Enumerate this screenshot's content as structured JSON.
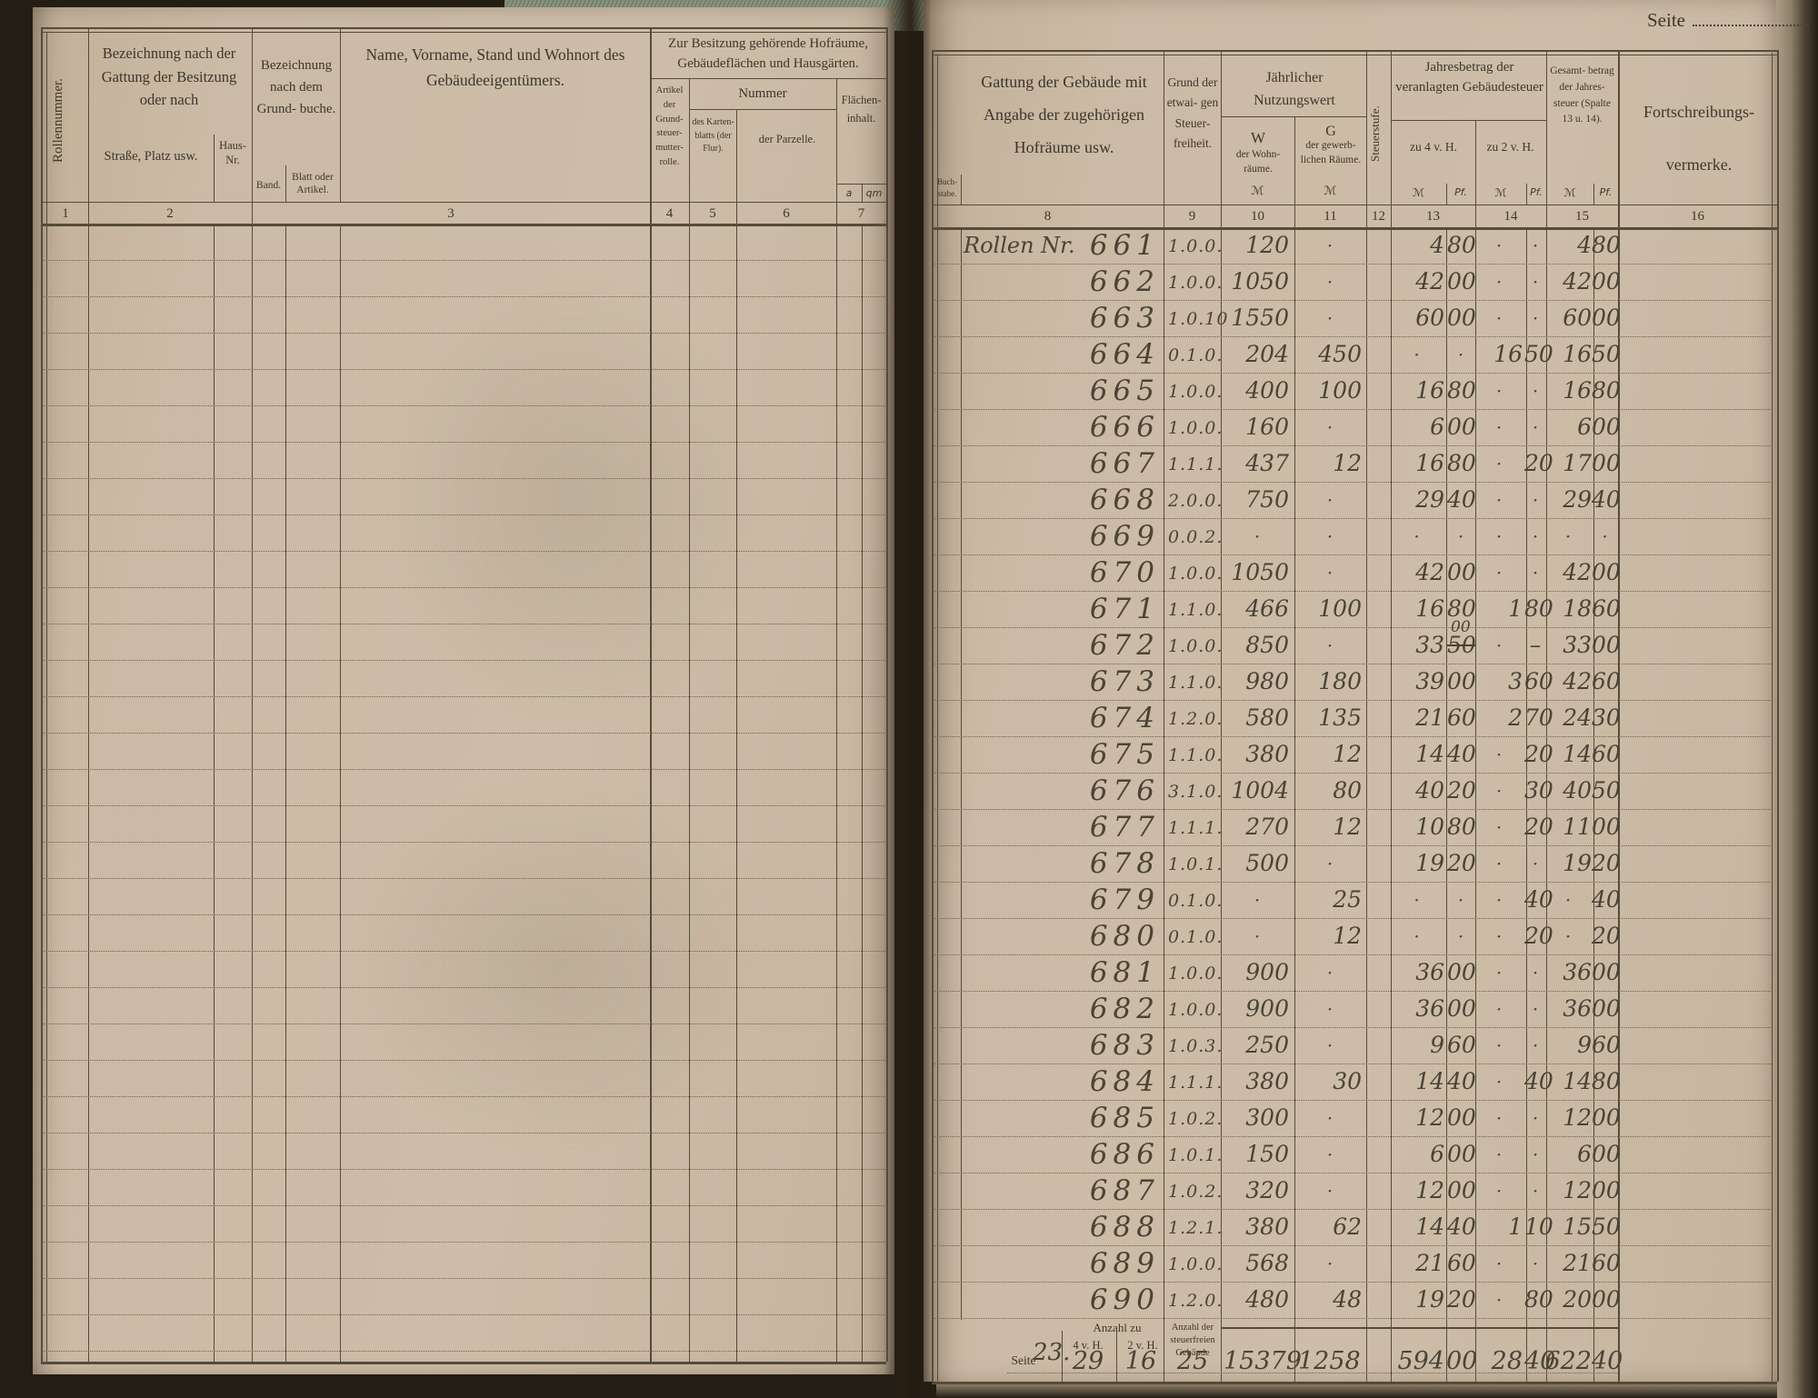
{
  "book": {
    "seite_label": "Seite",
    "seite_value": ""
  },
  "left_page": {
    "col1_rotated": "Rollennummer.",
    "col2_heading": "Bezeichnung nach der Gattung der Besitzung oder nach",
    "col2_sub1": "Straße, Platz usw.",
    "col2_sub2": "Haus- Nr.",
    "col3_heading": "Bezeichnung nach dem Grund- buche.",
    "col3_sub1": "Band.",
    "col3_sub2": "Blatt oder Artikel.",
    "col_name_heading": "Name, Vorname, Stand und Wohnort des Gebäudeeigentümers.",
    "group5_heading": "Zur Besitzung gehörende Hofräume, Gebäudeflächen und Hausgärten.",
    "col4_label": "Artikel der Grund- steuer- mutter- rolle.",
    "nummer_heading": "Nummer",
    "col5_label": "des Karten- blatts (der Flur).",
    "col6_label": "der Parzelle.",
    "col7_label": "Flächen- inhalt.",
    "col7_unit_a": "a",
    "col7_unit_qm": "qm",
    "col_numbers": [
      "1",
      "2",
      "3",
      "4",
      "5",
      "6",
      "7"
    ]
  },
  "right_page": {
    "col8_heading": "Gattung der Gebäude mit Angabe der zugehörigen Hofräume usw.",
    "col8_corner": "Buch- stabe.",
    "col9_heading": "Grund der etwai- gen Steuer- freiheit.",
    "nutzungswert_heading": "Jährlicher Nutzungswert",
    "col10_label_big": "W",
    "col10_label": "der Wohn- räume.",
    "col11_label_big": "G",
    "col11_label": "der gewerb- lichen Räume.",
    "col12_rotated": "Steuerstufe.",
    "jahresbetrag_heading": "Jahresbetrag der veranlagten Gebäudesteuer",
    "col13_label": "zu 4 v. H.",
    "col14_label": "zu 2 v. H.",
    "col15_label": "Gesamt- betrag der Jahres- steuer (Spalte 13 u. 14).",
    "col16_heading": "Fortschreibungs- vermerke.",
    "unit_mark": "ℳ",
    "unit_pf": "Pf.",
    "col_numbers": [
      "8",
      "9",
      "10",
      "11",
      "12",
      "13",
      "14",
      "15",
      "16"
    ],
    "rows": [
      {
        "prefix": "Rollen Nr.",
        "nr": "661",
        "grund": "1.0.0.",
        "w": "120",
        "g": "·",
        "m4": "4",
        "pf4": "80",
        "m2": "·",
        "pf2": "·",
        "mt": "4",
        "pft": "80"
      },
      {
        "nr": "662",
        "grund": "1.0.0.",
        "w": "1050",
        "g": "·",
        "m4": "42",
        "pf4": "00",
        "m2": "·",
        "pf2": "·",
        "mt": "42",
        "pft": "00"
      },
      {
        "nr": "663",
        "grund": "1.0.10",
        "w": "1550",
        "g": "·",
        "m4": "60",
        "pf4": "00",
        "m2": "·",
        "pf2": "·",
        "mt": "60",
        "pft": "00"
      },
      {
        "nr": "664",
        "grund": "0.1.0.",
        "w": "204",
        "g": "450",
        "m4": "·",
        "pf4": "·",
        "m2": "16",
        "pf2": "50",
        "mt": "16",
        "pft": "50"
      },
      {
        "nr": "665",
        "grund": "1.0.0.",
        "w": "400",
        "g": "100",
        "m4": "16",
        "pf4": "80",
        "m2": "·",
        "pf2": "·",
        "mt": "16",
        "pft": "80"
      },
      {
        "nr": "666",
        "grund": "1.0.0.",
        "w": "160",
        "g": "·",
        "m4": "6",
        "pf4": "00",
        "m2": "·",
        "pf2": "·",
        "mt": "6",
        "pft": "00"
      },
      {
        "nr": "667",
        "grund": "1.1.1.",
        "w": "437",
        "g": "12",
        "m4": "16",
        "pf4": "80",
        "m2": "·",
        "pf2": "20",
        "mt": "17",
        "pft": "00"
      },
      {
        "nr": "668",
        "grund": "2.0.0.",
        "w": "750",
        "g": "·",
        "m4": "29",
        "pf4": "40",
        "m2": "·",
        "pf2": "·",
        "mt": "29",
        "pft": "40"
      },
      {
        "nr": "669",
        "grund": "0.0.2.",
        "w": "·",
        "g": "·",
        "m4": "·",
        "pf4": "·",
        "m2": "·",
        "pf2": "·",
        "mt": "·",
        "pft": "·"
      },
      {
        "nr": "670",
        "grund": "1.0.0.",
        "w": "1050",
        "g": "·",
        "m4": "42",
        "pf4": "00",
        "m2": "·",
        "pf2": "·",
        "mt": "42",
        "pft": "00"
      },
      {
        "nr": "671",
        "grund": "1.1.0.",
        "w": "466",
        "g": "100",
        "m4": "16",
        "pf4": "80",
        "m2": "1",
        "pf2": "80",
        "mt": "18",
        "pft": "60"
      },
      {
        "nr": "672",
        "grund": "1.0.0.",
        "w": "850",
        "g": "·",
        "m4": "33",
        "pf4": "00",
        "pf4_struck": "50",
        "m2": "·",
        "pf2": "–",
        "mt": "33",
        "pft": "00"
      },
      {
        "nr": "673",
        "grund": "1.1.0.",
        "w": "980",
        "g": "180",
        "m4": "39",
        "pf4": "00",
        "m2": "3",
        "pf2": "60",
        "mt": "42",
        "pft": "60"
      },
      {
        "nr": "674",
        "grund": "1.2.0.",
        "w": "580",
        "g": "135",
        "m4": "21",
        "pf4": "60",
        "m2": "2",
        "pf2": "70",
        "mt": "24",
        "pft": "30"
      },
      {
        "nr": "675",
        "grund": "1.1.0.",
        "w": "380",
        "g": "12",
        "m4": "14",
        "pf4": "40",
        "m2": "·",
        "pf2": "20",
        "mt": "14",
        "pft": "60"
      },
      {
        "nr": "676",
        "grund": "3.1.0.",
        "w": "1004",
        "g": "80",
        "m4": "40",
        "pf4": "20",
        "m2": "·",
        "pf2": "30",
        "mt": "40",
        "pft": "50"
      },
      {
        "nr": "677",
        "grund": "1.1.1.",
        "w": "270",
        "g": "12",
        "m4": "10",
        "pf4": "80",
        "m2": "·",
        "pf2": "20",
        "mt": "11",
        "pft": "00"
      },
      {
        "nr": "678",
        "grund": "1.0.1.",
        "w": "500",
        "g": "·",
        "m4": "19",
        "pf4": "20",
        "m2": "·",
        "pf2": "·",
        "mt": "19",
        "pft": "20"
      },
      {
        "nr": "679",
        "grund": "0.1.0.",
        "w": "·",
        "g": "25",
        "m4": "·",
        "pf4": "·",
        "m2": "·",
        "pf2": "40",
        "mt": "·",
        "pft": "40"
      },
      {
        "nr": "680",
        "grund": "0.1.0.",
        "w": "·",
        "g": "12",
        "m4": "·",
        "pf4": "·",
        "m2": "·",
        "pf2": "20",
        "mt": "·",
        "pft": "20"
      },
      {
        "nr": "681",
        "grund": "1.0.0.",
        "w": "900",
        "g": "·",
        "m4": "36",
        "pf4": "00",
        "m2": "·",
        "pf2": "·",
        "mt": "36",
        "pft": "00"
      },
      {
        "nr": "682",
        "grund": "1.0.0.",
        "w": "900",
        "g": "·",
        "m4": "36",
        "pf4": "00",
        "m2": "·",
        "pf2": "·",
        "mt": "36",
        "pft": "00"
      },
      {
        "nr": "683",
        "grund": "1.0.3.",
        "w": "250",
        "g": "·",
        "m4": "9",
        "pf4": "60",
        "m2": "·",
        "pf2": "·",
        "mt": "9",
        "pft": "60"
      },
      {
        "nr": "684",
        "grund": "1.1.1.",
        "w": "380",
        "g": "30",
        "m4": "14",
        "pf4": "40",
        "m2": "·",
        "pf2": "40",
        "mt": "14",
        "pft": "80"
      },
      {
        "nr": "685",
        "grund": "1.0.2.",
        "w": "300",
        "g": "·",
        "m4": "12",
        "pf4": "00",
        "m2": "·",
        "pf2": "·",
        "mt": "12",
        "pft": "00"
      },
      {
        "nr": "686",
        "grund": "1.0.1.",
        "w": "150",
        "g": "·",
        "m4": "6",
        "pf4": "00",
        "m2": "·",
        "pf2": "·",
        "mt": "6",
        "pft": "00"
      },
      {
        "nr": "687",
        "grund": "1.0.2.",
        "w": "320",
        "g": "·",
        "m4": "12",
        "pf4": "00",
        "m2": "·",
        "pf2": "·",
        "mt": "12",
        "pft": "00"
      },
      {
        "nr": "688",
        "grund": "1.2.1.",
        "w": "380",
        "g": "62",
        "m4": "14",
        "pf4": "40",
        "m2": "1",
        "pf2": "10",
        "mt": "15",
        "pft": "50"
      },
      {
        "nr": "689",
        "grund": "1.0.0.",
        "w": "568",
        "g": "·",
        "m4": "21",
        "pf4": "60",
        "m2": "·",
        "pf2": "·",
        "mt": "21",
        "pft": "60"
      },
      {
        "nr": "690",
        "grund": "1.2.0.",
        "w": "480",
        "g": "48",
        "m4": "19",
        "pf4": "20",
        "m2": "·",
        "pf2": "80",
        "mt": "20",
        "pft": "00"
      }
    ],
    "footer": {
      "seite_label": "Seite",
      "seite_value": "23.",
      "anzahl_zu_label": "Anzahl zu",
      "h4_label": "4 v. H.",
      "h2_label": "2 v. H.",
      "steuerfrei_label": "Anzahl der steuerfreien Gebäude",
      "anzahl_4vh": "29",
      "anzahl_2vh": "16",
      "steuerfrei_anzahl": "25",
      "sum_w": "15379",
      "sum_g": "1258",
      "sum_m4": "594",
      "sum_pf4": "00",
      "sum_m2": "28",
      "sum_pf2": "40",
      "sum_mt": "622",
      "sum_pft": "40"
    }
  }
}
